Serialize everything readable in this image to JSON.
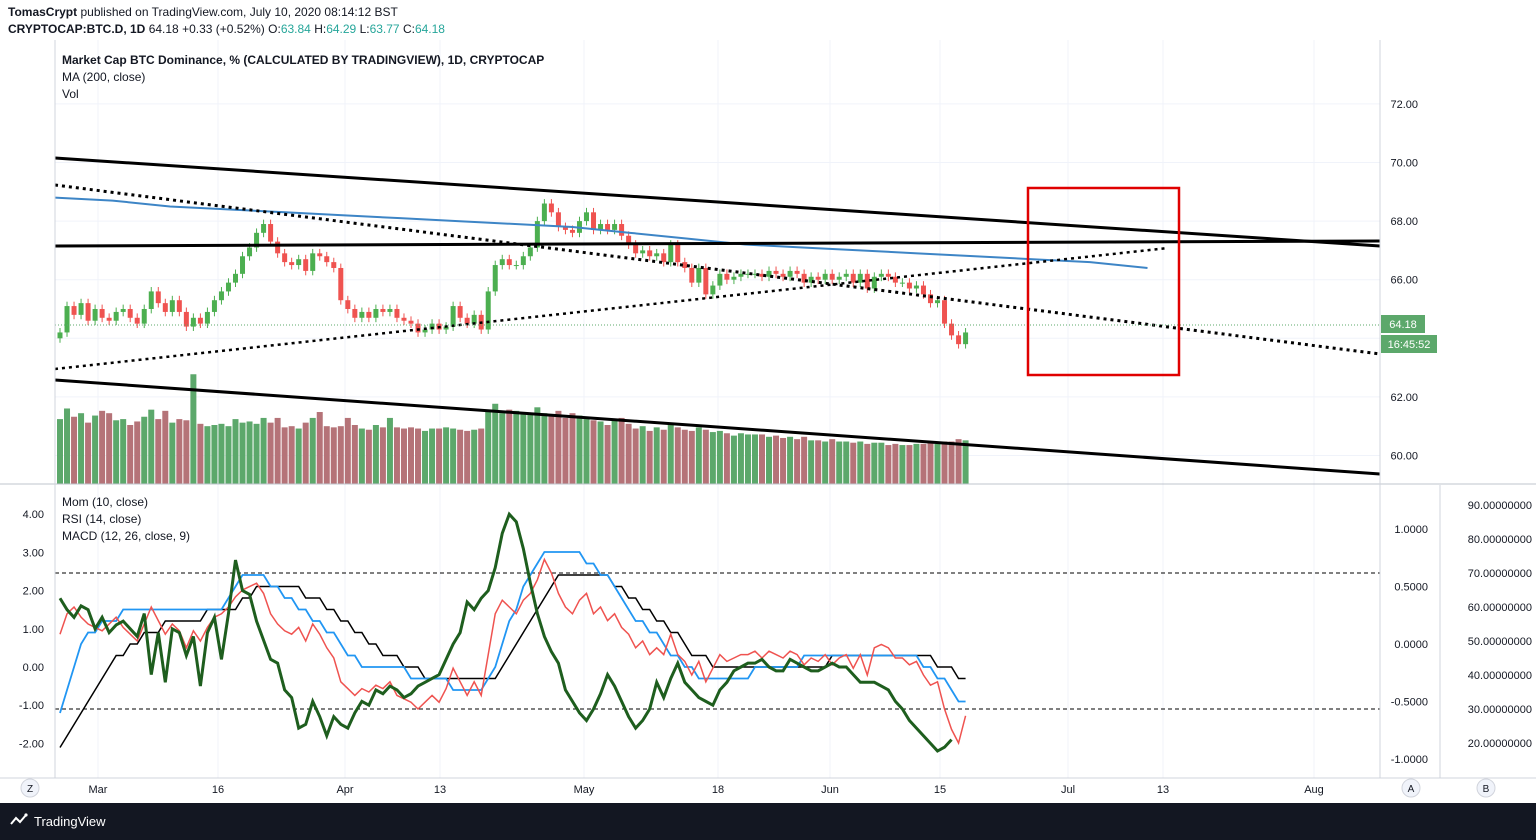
{
  "header": {
    "author": "TomasCrypt",
    "published_text": "published on TradingView.com, July 10, 2020 08:14:12 BST",
    "symbol": "CRYPTOCAP:BTC.D, 1D",
    "last": "64.18",
    "change": "+0.33 (+0.52%)",
    "o_label": "O:",
    "o": "63.84",
    "h_label": "H:",
    "h": "64.29",
    "l_label": "L:",
    "l": "63.77",
    "c_label": "C:",
    "c": "64.18"
  },
  "legend_main": [
    "Market Cap BTC Dominance, % (CALCULATED BY TRADINGVIEW), 1D, CRYPTOCAP",
    "MA (200, close)",
    "Vol"
  ],
  "legend_sub": [
    "Mom (10, close)",
    "RSI (14, close)",
    "MACD (12, 26, close, 9)"
  ],
  "price_label": "64.18",
  "countdown_label": "16:45:52",
  "footer": {
    "brand": "TradingView"
  },
  "bottom_buttons": {
    "z": "Z",
    "a": "A",
    "b": "B"
  },
  "colors": {
    "up": "#4caf50",
    "down": "#ef5350",
    "up_vol": "#5ca86b",
    "down_vol": "#b57378",
    "ma": "#3d85c6",
    "mom": "#1e5e1e",
    "rsi": "#ef5350",
    "macd": "#2196f3",
    "signal": "#000000",
    "highlight_box": "#e00000",
    "last_price": "#5ca86b"
  },
  "chart_data": [
    {
      "type": "candlestick",
      "title": "Market Cap BTC Dominance, % (CALCULATED BY TRADINGVIEW), 1D, CRYPTOCAP",
      "x_ticks": [
        "Mar",
        "16",
        "Apr",
        "13",
        "May",
        "18",
        "Jun",
        "15",
        "Jul",
        "13",
        "Aug"
      ],
      "y_ticks": [
        "60.00",
        "62.00",
        "64.00",
        "66.00",
        "68.00",
        "70.00",
        "72.00"
      ],
      "ylim": [
        58.8,
        73.3
      ],
      "close": [
        64.2,
        65.1,
        64.8,
        65.2,
        64.6,
        65.0,
        64.7,
        64.6,
        64.9,
        65.0,
        64.7,
        64.5,
        65.0,
        65.6,
        65.2,
        64.9,
        65.3,
        64.9,
        64.4,
        64.7,
        64.5,
        64.9,
        65.3,
        65.6,
        65.9,
        66.2,
        66.8,
        67.1,
        67.6,
        67.9,
        67.3,
        66.9,
        66.6,
        66.5,
        66.7,
        66.3,
        66.9,
        66.8,
        66.6,
        66.4,
        65.3,
        65.0,
        64.7,
        64.9,
        64.7,
        65.0,
        64.9,
        65.0,
        64.7,
        64.6,
        64.5,
        64.2,
        64.3,
        64.5,
        64.3,
        64.4,
        65.1,
        64.7,
        64.5,
        64.8,
        64.3,
        65.6,
        66.5,
        66.7,
        66.5,
        66.5,
        66.8,
        67.1,
        68.0,
        68.6,
        68.3,
        67.8,
        67.7,
        67.6,
        68.0,
        68.3,
        67.7,
        67.9,
        67.7,
        67.9,
        67.5,
        67.2,
        66.9,
        67.0,
        66.8,
        66.9,
        66.6,
        67.2,
        66.6,
        66.4,
        65.9,
        66.4,
        65.5,
        65.8,
        66.2,
        66.0,
        66.1,
        66.2,
        66.2,
        66.2,
        66.1,
        66.3,
        66.2,
        66.1,
        66.3,
        66.2,
        65.9,
        66.1,
        66.0,
        66.2,
        66.0,
        66.1,
        66.2,
        65.9,
        66.2,
        65.7,
        66.1,
        66.2,
        66.1,
        65.9,
        65.9,
        65.7,
        65.8,
        65.5,
        65.2,
        65.3,
        64.5,
        64.1,
        63.8,
        64.2
      ],
      "ma_200": [
        68.8,
        68.7,
        68.5,
        68.4,
        68.3,
        68.2,
        68.1,
        68.0,
        67.9,
        67.8,
        67.6,
        67.4,
        67.2,
        67.1,
        67.0,
        66.9,
        66.8,
        66.7,
        66.6,
        66.4
      ],
      "volume_relative": [
        0.55,
        0.64,
        0.57,
        0.6,
        0.52,
        0.58,
        0.62,
        0.6,
        0.54,
        0.55,
        0.5,
        0.53,
        0.57,
        0.63,
        0.55,
        0.62,
        0.52,
        0.55,
        0.54,
        0.93,
        0.51,
        0.49,
        0.5,
        0.51,
        0.49,
        0.55,
        0.52,
        0.53,
        0.51,
        0.56,
        0.52,
        0.56,
        0.48,
        0.49,
        0.47,
        0.52,
        0.56,
        0.61,
        0.49,
        0.48,
        0.49,
        0.56,
        0.5,
        0.47,
        0.46,
        0.5,
        0.48,
        0.56,
        0.48,
        0.47,
        0.48,
        0.47,
        0.45,
        0.47,
        0.47,
        0.48,
        0.47,
        0.46,
        0.45,
        0.46,
        0.47,
        0.63,
        0.68,
        0.6,
        0.63,
        0.62,
        0.6,
        0.6,
        0.65,
        0.6,
        0.59,
        0.62,
        0.56,
        0.6,
        0.58,
        0.55,
        0.54,
        0.53,
        0.5,
        0.54,
        0.56,
        0.51,
        0.47,
        0.49,
        0.45,
        0.48,
        0.46,
        0.5,
        0.48,
        0.46,
        0.45,
        0.48,
        0.46,
        0.44,
        0.45,
        0.43,
        0.41,
        0.43,
        0.42,
        0.42,
        0.42,
        0.4,
        0.41,
        0.39,
        0.4,
        0.38,
        0.4,
        0.37,
        0.37,
        0.36,
        0.38,
        0.36,
        0.36,
        0.35,
        0.36,
        0.34,
        0.35,
        0.35,
        0.33,
        0.34,
        0.33,
        0.33,
        0.34,
        0.34,
        0.35,
        0.34,
        0.36,
        0.36,
        0.38,
        0.37
      ]
    },
    {
      "type": "line",
      "series_labels": [
        "Mom (10, close)",
        "RSI (14, close)",
        "MACD (12, 26, close, 9)"
      ],
      "left_axis_ticks": [
        "4.00",
        "3.00",
        "2.00",
        "1.00",
        "0.00",
        "-1.00",
        "-2.00"
      ],
      "right_axis_ticks": [
        "1.0000",
        "0.5000",
        "0.0000",
        "-0.5000",
        "-1.0000"
      ],
      "rsi_axis_ticks": [
        "90.00000000",
        "80.00000000",
        "70.00000000",
        "60.00000000",
        "50.00000000",
        "40.00000000",
        "30.00000000",
        "20.00000000"
      ],
      "rsi_bands": [
        70,
        30
      ],
      "mom": [
        1.8,
        1.5,
        1.3,
        1.6,
        1.5,
        1.0,
        1.3,
        0.9,
        1.1,
        1.2,
        1.0,
        0.8,
        1.4,
        -0.2,
        0.9,
        -0.4,
        1.0,
        0.9,
        0.3,
        0.8,
        -0.5,
        0.9,
        1.3,
        0.2,
        1.4,
        2.8,
        2.0,
        1.9,
        1.2,
        0.7,
        0.2,
        0.1,
        -0.6,
        -0.8,
        -1.6,
        -1.5,
        -0.9,
        -1.3,
        -1.8,
        -1.3,
        -1.5,
        -1.6,
        -1.2,
        -0.9,
        -1.0,
        -0.6,
        -0.7,
        -0.5,
        -0.6,
        -0.8,
        -0.7,
        -0.5,
        -0.4,
        -0.3,
        -0.2,
        0.2,
        0.6,
        0.9,
        1.7,
        1.5,
        1.8,
        2.0,
        2.6,
        3.5,
        4.0,
        3.8,
        3.1,
        2.2,
        1.4,
        0.8,
        0.4,
        0.1,
        -0.6,
        -0.9,
        -1.2,
        -1.4,
        -1.1,
        -0.7,
        -0.2,
        -0.5,
        -0.9,
        -1.3,
        -1.6,
        -1.4,
        -1.1,
        -0.4,
        -0.8,
        -0.3,
        0.1,
        -0.4,
        -0.6,
        -0.8,
        -0.9,
        -1.0,
        -0.6,
        -0.4,
        -0.1,
        0.0,
        0.1,
        0.1,
        0.2,
        0.0,
        -0.1,
        -0.1,
        0.2,
        0.1,
        0.0,
        -0.1,
        -0.1,
        0.0,
        0.1,
        0.0,
        0.0,
        -0.2,
        -0.4,
        -0.4,
        -0.4,
        -0.5,
        -0.6,
        -0.9,
        -1.1,
        -1.4,
        -1.6,
        -1.8,
        -2.0,
        -2.2,
        -2.1,
        -1.9
      ],
      "rsi": [
        52,
        58,
        60,
        57,
        55,
        54,
        53,
        55,
        57,
        54,
        52,
        50,
        55,
        60,
        56,
        52,
        55,
        53,
        48,
        53,
        50,
        54,
        57,
        58,
        60,
        63,
        65,
        66,
        67,
        64,
        58,
        55,
        53,
        52,
        54,
        50,
        55,
        52,
        48,
        45,
        38,
        36,
        34,
        36,
        35,
        37,
        36,
        38,
        34,
        33,
        32,
        30,
        32,
        34,
        32,
        36,
        42,
        38,
        34,
        38,
        34,
        46,
        58,
        62,
        60,
        58,
        62,
        64,
        68,
        74,
        70,
        64,
        60,
        58,
        62,
        64,
        58,
        60,
        56,
        58,
        54,
        52,
        48,
        50,
        46,
        48,
        46,
        52,
        46,
        44,
        40,
        44,
        38,
        42,
        46,
        44,
        45,
        46,
        46,
        47,
        45,
        47,
        46,
        45,
        47,
        46,
        43,
        45,
        44,
        46,
        43,
        45,
        46,
        42,
        46,
        40,
        48,
        49,
        48,
        45,
        45,
        43,
        44,
        40,
        37,
        38,
        30,
        24,
        20,
        28
      ],
      "macd_line": [
        -0.6,
        -0.4,
        -0.2,
        0.0,
        0.1,
        0.1,
        0.2,
        0.2,
        0.2,
        0.3,
        0.3,
        0.3,
        0.3,
        0.3,
        0.3,
        0.3,
        0.3,
        0.3,
        0.3,
        0.3,
        0.3,
        0.3,
        0.3,
        0.3,
        0.4,
        0.5,
        0.6,
        0.6,
        0.6,
        0.6,
        0.5,
        0.5,
        0.4,
        0.4,
        0.3,
        0.3,
        0.2,
        0.2,
        0.1,
        0.1,
        0.0,
        -0.1,
        -0.1,
        -0.2,
        -0.2,
        -0.2,
        -0.2,
        -0.2,
        -0.2,
        -0.2,
        -0.3,
        -0.3,
        -0.3,
        -0.3,
        -0.3,
        -0.3,
        -0.4,
        -0.4,
        -0.4,
        -0.4,
        -0.4,
        -0.3,
        -0.2,
        0.0,
        0.2,
        0.3,
        0.5,
        0.6,
        0.7,
        0.8,
        0.8,
        0.8,
        0.8,
        0.8,
        0.8,
        0.7,
        0.7,
        0.6,
        0.6,
        0.5,
        0.4,
        0.3,
        0.2,
        0.2,
        0.1,
        0.1,
        0.0,
        -0.1,
        -0.1,
        -0.2,
        -0.2,
        -0.3,
        -0.3,
        -0.3,
        -0.3,
        -0.3,
        -0.3,
        -0.3,
        -0.3,
        -0.2,
        -0.2,
        -0.2,
        -0.2,
        -0.2,
        -0.2,
        -0.2,
        -0.1,
        -0.1,
        -0.1,
        -0.1,
        -0.1,
        -0.1,
        -0.1,
        -0.1,
        -0.1,
        -0.1,
        -0.1,
        -0.1,
        -0.1,
        -0.1,
        -0.1,
        -0.1,
        -0.1,
        -0.2,
        -0.2,
        -0.3,
        -0.3,
        -0.4,
        -0.5,
        -0.5
      ],
      "signal_line": [
        -0.9,
        -0.8,
        -0.7,
        -0.6,
        -0.5,
        -0.4,
        -0.3,
        -0.2,
        -0.1,
        -0.1,
        0.0,
        0.0,
        0.1,
        0.1,
        0.1,
        0.2,
        0.2,
        0.2,
        0.2,
        0.2,
        0.2,
        0.3,
        0.3,
        0.3,
        0.3,
        0.3,
        0.4,
        0.4,
        0.5,
        0.5,
        0.5,
        0.5,
        0.5,
        0.5,
        0.5,
        0.4,
        0.4,
        0.4,
        0.3,
        0.3,
        0.2,
        0.2,
        0.1,
        0.1,
        0.0,
        0.0,
        -0.1,
        -0.1,
        -0.1,
        -0.2,
        -0.2,
        -0.2,
        -0.3,
        -0.3,
        -0.3,
        -0.3,
        -0.3,
        -0.3,
        -0.3,
        -0.3,
        -0.3,
        -0.3,
        -0.3,
        -0.2,
        -0.1,
        0.0,
        0.1,
        0.2,
        0.3,
        0.4,
        0.5,
        0.6,
        0.6,
        0.6,
        0.6,
        0.6,
        0.6,
        0.6,
        0.6,
        0.5,
        0.5,
        0.4,
        0.4,
        0.3,
        0.3,
        0.2,
        0.2,
        0.1,
        0.1,
        0.0,
        -0.1,
        -0.1,
        -0.1,
        -0.2,
        -0.2,
        -0.2,
        -0.2,
        -0.2,
        -0.2,
        -0.2,
        -0.2,
        -0.2,
        -0.2,
        -0.2,
        -0.2,
        -0.2,
        -0.2,
        -0.2,
        -0.2,
        -0.2,
        -0.1,
        -0.1,
        -0.1,
        -0.1,
        -0.1,
        -0.1,
        -0.1,
        -0.1,
        -0.1,
        -0.1,
        -0.1,
        -0.1,
        -0.1,
        -0.1,
        -0.1,
        -0.2,
        -0.2,
        -0.2,
        -0.3,
        -0.3
      ]
    }
  ]
}
